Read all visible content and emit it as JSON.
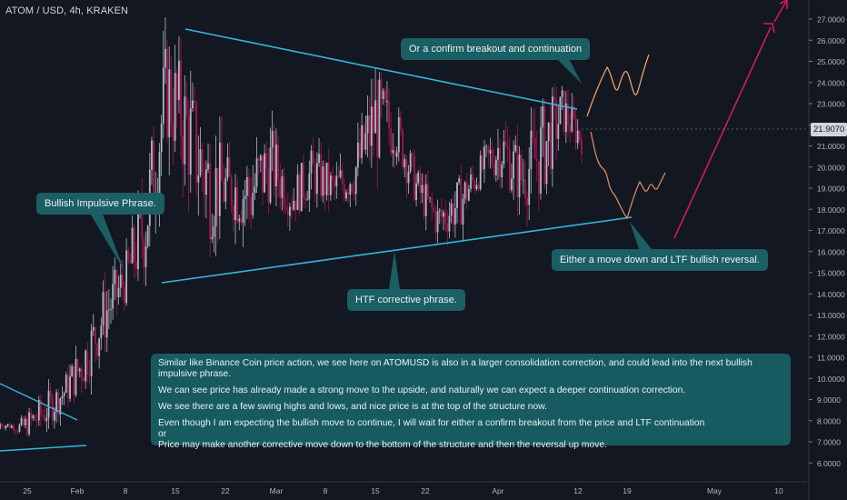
{
  "symbol": "ATOM / USD, 4h, KRAKEN",
  "current_price": "21.9070",
  "colors": {
    "background": "#131722",
    "up": "#b0b7c3",
    "down": "#a3174f",
    "trendline": "#36b6d9",
    "projection_down": "#d98a5a",
    "projection_up": "#f0a060",
    "arrow": "#d11b5d",
    "callout": "#1b5e63"
  },
  "callouts": {
    "breakout": "Or a confirm breakout and continuation",
    "impulsive": "Bullish Impulsive Phrase.",
    "corrective": "HTF corrective phrase.",
    "move_down": "Either a move down and LTF bullish reversal."
  },
  "notes": {
    "p1": "Similar like Binance Coin price action, we see here on ATOMUSD is also in a larger consolidation correction, and could lead into the next bullish impulsive phrase.",
    "p2": "We can see price has already made a strong move to the upside, and naturally we can expect a deeper continuation correction.",
    "p3": "We see there are a few swing highs and lows, and nice price is at the top of the structure now.",
    "p4a": "Even though I am expecting the bullish move to continue, I will wait for either a confirm breakout from the price and LTF continuation",
    "p4b": "or",
    "p4c": "Price may make another corrective move down to the bottom of the structure and then the reversal up move."
  },
  "chart_data": {
    "type": "candlestick",
    "title": "ATOM / USD, 4h, KRAKEN",
    "y_ticks": [
      "27.0000",
      "26.0000",
      "25.0000",
      "24.0000",
      "23.0000",
      "22.0000",
      "21.0000",
      "20.0000",
      "19.0000",
      "18.0000",
      "17.0000",
      "16.0000",
      "15.0000",
      "14.0000",
      "13.0000",
      "12.0000",
      "11.0000",
      "10.0000",
      "9.0000",
      "8.0000",
      "7.0000",
      "6.0000"
    ],
    "x_ticks": [
      "25",
      "Feb",
      "8",
      "15",
      "22",
      "Mar",
      "8",
      "15",
      "22",
      "Apr",
      "12",
      "19",
      "May",
      "10"
    ],
    "ylim": [
      5.5,
      27.5
    ],
    "price_path": [
      [
        7.6,
        8.1
      ],
      [
        8.1,
        7.2
      ],
      [
        9.2,
        7.4
      ],
      [
        10.0,
        8.5
      ],
      [
        12.0,
        9.5
      ],
      [
        14.5,
        11.5
      ],
      [
        15.8,
        13.5
      ],
      [
        20.0,
        15.0
      ],
      [
        26.3,
        21.0
      ],
      [
        24.5,
        19.0
      ],
      [
        22.0,
        16.5
      ],
      [
        20.5,
        17.5
      ],
      [
        21.0,
        16.5
      ],
      [
        22.0,
        18.5
      ],
      [
        19.5,
        17.5
      ],
      [
        21.0,
        18.5
      ],
      [
        20.0,
        17.8
      ],
      [
        21.0,
        18.5
      ],
      [
        24.5,
        20.0
      ],
      [
        23.0,
        20.5
      ],
      [
        20.0,
        18.0
      ],
      [
        18.5,
        16.5
      ],
      [
        19.5,
        17.0
      ],
      [
        20.5,
        19.0
      ],
      [
        22.5,
        19.5
      ],
      [
        21.0,
        18.0
      ],
      [
        23.0,
        18.5
      ],
      [
        23.8,
        21.5
      ],
      [
        22.0,
        20.5
      ]
    ],
    "trendlines": [
      {
        "label": "upper",
        "from": [
          "Feb 15",
          26.6
        ],
        "to": [
          "Apr 12",
          22.8
        ]
      },
      {
        "label": "lower",
        "from": [
          "Feb 15",
          14.5
        ],
        "to": [
          "Apr 19",
          17.6
        ]
      }
    ],
    "grid": false,
    "legend": "none"
  }
}
